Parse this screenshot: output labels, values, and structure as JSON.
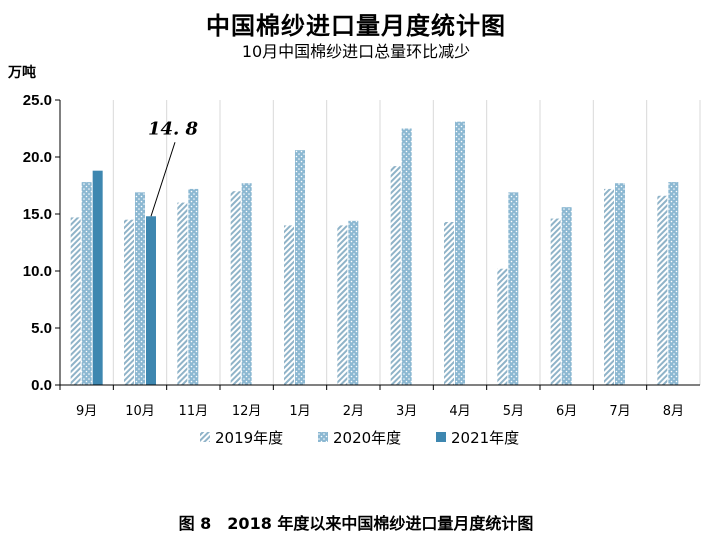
{
  "title": "中国棉纱进口量月度统计图",
  "subtitle": "10月中国棉纱进口总量环比减少",
  "unit_label": "万吨",
  "caption": "图 8　2018 年度以来中国棉纱进口量月度统计图",
  "chart_data": {
    "type": "bar",
    "categories": [
      "9月",
      "10月",
      "11月",
      "12月",
      "1月",
      "2月",
      "3月",
      "4月",
      "5月",
      "6月",
      "7月",
      "8月"
    ],
    "series": [
      {
        "name": "2019年度",
        "color": "#8fb3c8",
        "pattern": "diagonal-stripes",
        "values": [
          14.7,
          14.5,
          16.0,
          17.0,
          14.0,
          14.0,
          19.2,
          14.3,
          10.2,
          14.6,
          17.2,
          16.6
        ]
      },
      {
        "name": "2020年度",
        "color": "#8cb8d2",
        "pattern": "dotted",
        "values": [
          17.8,
          16.9,
          17.2,
          17.7,
          20.6,
          14.4,
          22.5,
          23.1,
          16.9,
          15.6,
          17.7,
          17.8
        ]
      },
      {
        "name": "2021年度",
        "color": "#3e87b0",
        "pattern": "solid",
        "values": [
          18.8,
          14.8,
          null,
          null,
          null,
          null,
          null,
          null,
          null,
          null,
          null,
          null
        ]
      }
    ],
    "ylim": [
      0,
      25
    ],
    "yticks": [
      "0.0",
      "5.0",
      "10.0",
      "15.0",
      "20.0",
      "25.0"
    ],
    "grid": "vertical",
    "legend_position": "bottom",
    "annotation": {
      "text": "14. 8",
      "category": "10月",
      "series": "2021年度"
    }
  }
}
